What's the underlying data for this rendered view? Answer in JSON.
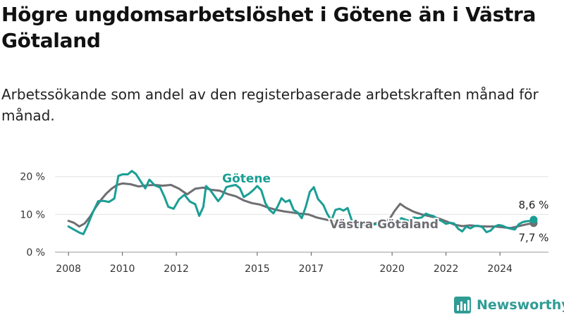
{
  "title": "Högre ungdomsarbetslöshet i Götene än i Västra Götaland",
  "subtitle": "Arbetssökande som andel av den registerbaserade arbetskraften månad för månad.",
  "brand": {
    "name": "Newsworthy",
    "icon": "bar-chart-icon"
  },
  "chart_data": {
    "type": "line",
    "title": "Högre ungdomsarbetslöshet i Götene än i Västra Götaland",
    "subtitle": "Arbetssökande som andel av den registerbaserade arbetskraften månad för månad.",
    "x_unit": "year",
    "xlim": [
      2007.5,
      2025.8
    ],
    "ylim": [
      0,
      22
    ],
    "x_ticks": [
      2008,
      2010,
      2012,
      2015,
      2017,
      2020,
      2022,
      2024
    ],
    "y_ticks": [
      {
        "value": 0,
        "label": "0 %"
      },
      {
        "value": 10,
        "label": "10 %"
      },
      {
        "value": 20,
        "label": "20 %"
      }
    ],
    "grid": true,
    "series": [
      {
        "name": "Västra Götaland",
        "color": "#6e6e73",
        "end_label": "7,7 %",
        "points": [
          [
            2008.0,
            8.3
          ],
          [
            2008.2,
            7.8
          ],
          [
            2008.4,
            6.8
          ],
          [
            2008.6,
            7.6
          ],
          [
            2008.8,
            9.4
          ],
          [
            2009.0,
            11.8
          ],
          [
            2009.2,
            13.8
          ],
          [
            2009.4,
            15.5
          ],
          [
            2009.6,
            16.8
          ],
          [
            2009.8,
            17.8
          ],
          [
            2010.0,
            18.2
          ],
          [
            2010.3,
            18.0
          ],
          [
            2010.6,
            17.4
          ],
          [
            2010.9,
            17.7
          ],
          [
            2011.2,
            17.8
          ],
          [
            2011.5,
            17.6
          ],
          [
            2011.8,
            17.8
          ],
          [
            2012.1,
            16.8
          ],
          [
            2012.4,
            15.3
          ],
          [
            2012.7,
            16.8
          ],
          [
            2013.0,
            17.1
          ],
          [
            2013.3,
            16.5
          ],
          [
            2013.6,
            16.3
          ],
          [
            2013.9,
            15.4
          ],
          [
            2014.2,
            14.8
          ],
          [
            2014.5,
            13.7
          ],
          [
            2014.8,
            13.0
          ],
          [
            2015.1,
            12.6
          ],
          [
            2015.4,
            11.8
          ],
          [
            2015.7,
            11.2
          ],
          [
            2016.0,
            10.8
          ],
          [
            2016.3,
            10.5
          ],
          [
            2016.6,
            10.2
          ],
          [
            2016.9,
            10.0
          ],
          [
            2017.2,
            9.2
          ],
          [
            2017.5,
            8.7
          ],
          [
            2017.8,
            8.2
          ],
          [
            2018.1,
            7.6
          ],
          [
            2018.4,
            7.3
          ],
          [
            2018.7,
            7.5
          ],
          [
            2019.0,
            7.2
          ],
          [
            2019.3,
            7.5
          ],
          [
            2019.6,
            8.0
          ],
          [
            2019.9,
            8.7
          ],
          [
            2020.1,
            11.0
          ],
          [
            2020.3,
            12.8
          ],
          [
            2020.5,
            11.8
          ],
          [
            2020.8,
            10.7
          ],
          [
            2021.1,
            10.0
          ],
          [
            2021.4,
            9.5
          ],
          [
            2021.7,
            9.0
          ],
          [
            2022.0,
            8.2
          ],
          [
            2022.3,
            7.3
          ],
          [
            2022.6,
            6.9
          ],
          [
            2022.9,
            7.1
          ],
          [
            2023.2,
            6.9
          ],
          [
            2023.5,
            6.8
          ],
          [
            2023.8,
            6.8
          ],
          [
            2024.1,
            6.6
          ],
          [
            2024.4,
            6.4
          ],
          [
            2024.7,
            6.9
          ],
          [
            2025.0,
            7.4
          ],
          [
            2025.25,
            7.7
          ]
        ]
      },
      {
        "name": "Götene",
        "color": "#1a9e94",
        "end_label": "8,6 %",
        "points": [
          [
            2008.0,
            6.8
          ],
          [
            2008.2,
            6.0
          ],
          [
            2008.4,
            5.2
          ],
          [
            2008.55,
            4.8
          ],
          [
            2008.7,
            7.0
          ],
          [
            2008.9,
            10.5
          ],
          [
            2009.1,
            13.5
          ],
          [
            2009.3,
            13.6
          ],
          [
            2009.5,
            13.3
          ],
          [
            2009.7,
            14.2
          ],
          [
            2009.85,
            20.2
          ],
          [
            2010.0,
            20.6
          ],
          [
            2010.2,
            20.6
          ],
          [
            2010.35,
            21.5
          ],
          [
            2010.5,
            20.7
          ],
          [
            2010.7,
            18.5
          ],
          [
            2010.85,
            16.9
          ],
          [
            2011.0,
            19.2
          ],
          [
            2011.2,
            17.7
          ],
          [
            2011.4,
            17.1
          ],
          [
            2011.55,
            14.8
          ],
          [
            2011.7,
            12.0
          ],
          [
            2011.9,
            11.5
          ],
          [
            2012.1,
            14.0
          ],
          [
            2012.3,
            15.2
          ],
          [
            2012.5,
            13.4
          ],
          [
            2012.7,
            12.7
          ],
          [
            2012.85,
            9.6
          ],
          [
            2013.0,
            12.0
          ],
          [
            2013.1,
            17.5
          ],
          [
            2013.25,
            16.5
          ],
          [
            2013.4,
            15.0
          ],
          [
            2013.55,
            13.5
          ],
          [
            2013.7,
            14.8
          ],
          [
            2013.85,
            17.2
          ],
          [
            2014.0,
            17.5
          ],
          [
            2014.2,
            17.8
          ],
          [
            2014.35,
            17.0
          ],
          [
            2014.5,
            14.6
          ],
          [
            2014.7,
            15.5
          ],
          [
            2014.85,
            16.4
          ],
          [
            2015.0,
            17.5
          ],
          [
            2015.15,
            16.4
          ],
          [
            2015.3,
            13.0
          ],
          [
            2015.45,
            11.2
          ],
          [
            2015.6,
            10.3
          ],
          [
            2015.75,
            12.0
          ],
          [
            2015.9,
            14.3
          ],
          [
            2016.05,
            13.3
          ],
          [
            2016.2,
            13.8
          ],
          [
            2016.35,
            11.2
          ],
          [
            2016.5,
            10.5
          ],
          [
            2016.65,
            9.0
          ],
          [
            2016.8,
            12.0
          ],
          [
            2016.95,
            16.0
          ],
          [
            2017.1,
            17.2
          ],
          [
            2017.25,
            14.1
          ],
          [
            2017.45,
            12.5
          ],
          [
            2017.6,
            10.1
          ],
          [
            2017.75,
            8.4
          ],
          [
            2017.9,
            11.2
          ],
          [
            2018.05,
            11.5
          ],
          [
            2018.2,
            11.0
          ],
          [
            2018.35,
            11.7
          ],
          [
            2018.5,
            8.5
          ],
          [
            2018.65,
            7.2
          ],
          [
            2018.8,
            7.2
          ],
          [
            2019.0,
            8.0
          ],
          [
            2019.2,
            7.3
          ],
          [
            2019.4,
            7.4
          ],
          [
            2019.6,
            7.7
          ],
          [
            2019.8,
            8.0
          ],
          [
            2020.0,
            8.1
          ],
          [
            2020.2,
            8.4
          ],
          [
            2020.35,
            9.0
          ],
          [
            2020.5,
            8.6
          ],
          [
            2020.65,
            8.3
          ],
          [
            2020.8,
            9.2
          ],
          [
            2020.95,
            9.0
          ],
          [
            2021.1,
            9.2
          ],
          [
            2021.25,
            10.2
          ],
          [
            2021.4,
            9.8
          ],
          [
            2021.55,
            9.5
          ],
          [
            2021.7,
            8.7
          ],
          [
            2021.85,
            8.2
          ],
          [
            2022.0,
            7.5
          ],
          [
            2022.15,
            7.8
          ],
          [
            2022.3,
            7.6
          ],
          [
            2022.45,
            6.2
          ],
          [
            2022.6,
            5.5
          ],
          [
            2022.75,
            6.8
          ],
          [
            2022.9,
            6.3
          ],
          [
            2023.05,
            6.9
          ],
          [
            2023.2,
            7.0
          ],
          [
            2023.35,
            6.6
          ],
          [
            2023.5,
            5.3
          ],
          [
            2023.65,
            5.7
          ],
          [
            2023.8,
            6.8
          ],
          [
            2023.95,
            7.2
          ],
          [
            2024.1,
            7.0
          ],
          [
            2024.25,
            6.5
          ],
          [
            2024.4,
            6.2
          ],
          [
            2024.55,
            6.0
          ],
          [
            2024.7,
            7.4
          ],
          [
            2024.85,
            8.0
          ],
          [
            2025.0,
            8.2
          ],
          [
            2025.15,
            8.3
          ],
          [
            2025.25,
            8.6
          ]
        ]
      }
    ],
    "annotations": [
      {
        "text": "Götene",
        "series": "Götene",
        "x": 2014.6,
        "y": 18.5
      },
      {
        "text": "Västra Götaland",
        "series": "Västra Götaland",
        "x": 2019.7,
        "y": 6.3
      }
    ]
  }
}
